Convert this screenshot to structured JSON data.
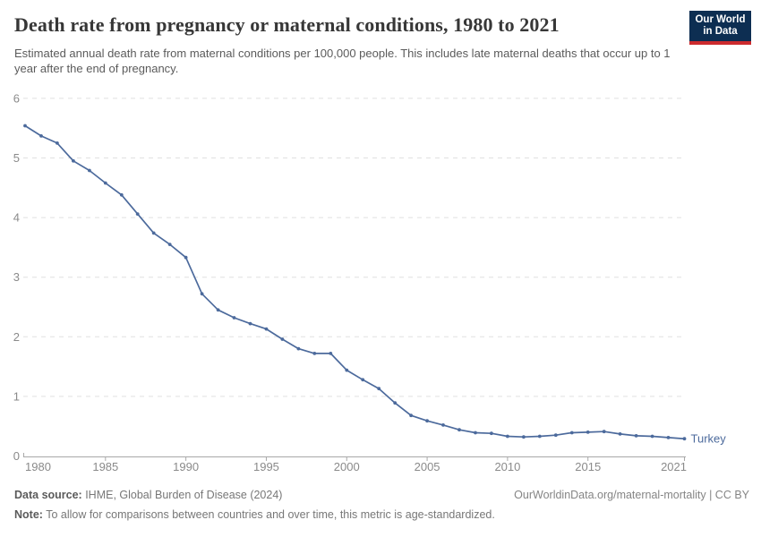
{
  "header": {
    "title": "Death rate from pregnancy or maternal conditions, 1980 to 2021",
    "subtitle": "Estimated annual death rate from maternal conditions per 100,000 people. This includes late maternal deaths that occur up to 1 year after the end of pregnancy.",
    "logo": {
      "line1": "Our World",
      "line2": "in Data"
    }
  },
  "footer": {
    "datasource_label": "Data source:",
    "datasource_text": " IHME, Global Burden of Disease (2024)",
    "link_text": "OurWorldinData.org/maternal-mortality | CC BY",
    "note_label": "Note:",
    "note_text": " To allow for comparisons between countries and over time, this metric is age-standardized."
  },
  "colors": {
    "series_blue": "#4c6a9c",
    "gridline": "#e0e0e0",
    "axis_line": "#a8a8a8",
    "tick_label": "#8a8a8a",
    "logo_navy": "#0d2e52",
    "logo_red": "#cc2b2e"
  },
  "chart_data": {
    "type": "line",
    "title": "Death rate from pregnancy or maternal conditions, 1980 to 2021",
    "subtitle": "Estimated annual death rate from maternal conditions per 100,000 people. This includes late maternal deaths that occur up to 1 year after the end of pregnancy.",
    "xlabel": "",
    "ylabel": "",
    "xlim": [
      1980,
      2021
    ],
    "ylim": [
      0,
      6
    ],
    "grid": "horizontal-dashed",
    "legend_position": "end-of-line-label",
    "xticks": [
      1980,
      1985,
      1990,
      1995,
      2000,
      2005,
      2010,
      2015,
      2021
    ],
    "yticks": [
      0,
      1,
      2,
      3,
      4,
      5,
      6
    ],
    "x": [
      1980,
      1981,
      1982,
      1983,
      1984,
      1985,
      1986,
      1987,
      1988,
      1989,
      1990,
      1991,
      1992,
      1993,
      1994,
      1995,
      1996,
      1997,
      1998,
      1999,
      2000,
      2001,
      2002,
      2003,
      2004,
      2005,
      2006,
      2007,
      2008,
      2009,
      2010,
      2011,
      2012,
      2013,
      2014,
      2015,
      2016,
      2017,
      2018,
      2019,
      2020,
      2021
    ],
    "series": [
      {
        "name": "Turkey",
        "color": "#4c6a9c",
        "values": [
          5.54,
          5.37,
          5.25,
          4.95,
          4.79,
          4.58,
          4.38,
          4.06,
          3.74,
          3.55,
          3.33,
          2.72,
          2.45,
          2.32,
          2.22,
          2.13,
          1.96,
          1.8,
          1.72,
          1.72,
          1.44,
          1.28,
          1.13,
          0.89,
          0.68,
          0.59,
          0.52,
          0.44,
          0.39,
          0.38,
          0.33,
          0.32,
          0.33,
          0.35,
          0.39,
          0.4,
          0.41,
          0.37,
          0.34,
          0.33,
          0.31,
          0.29
        ]
      }
    ]
  }
}
